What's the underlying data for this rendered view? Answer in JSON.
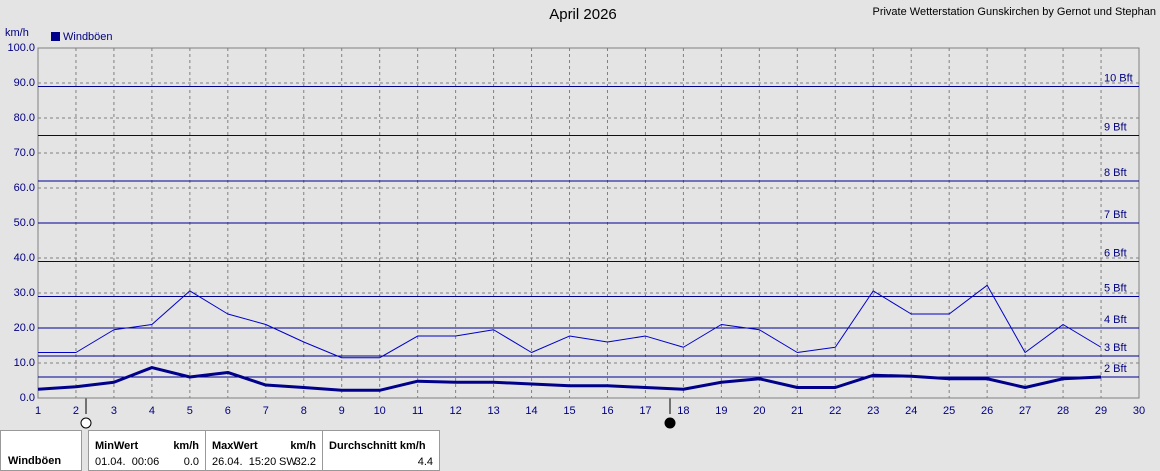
{
  "chart_data": {
    "type": "line",
    "title": "April 2026",
    "subtitle": "Private Wetterstation Gunskirchen by Gernot und Stephan",
    "y_label": "km/h",
    "x": [
      1,
      2,
      3,
      4,
      5,
      6,
      7,
      8,
      9,
      10,
      11,
      12,
      13,
      14,
      15,
      16,
      17,
      18,
      19,
      20,
      21,
      22,
      23,
      24,
      25,
      26,
      27,
      28,
      29
    ],
    "series": [
      {
        "name": "Windböen",
        "color": "#0000c8",
        "width": 1,
        "values": [
          13,
          13,
          19.5,
          21,
          30.6,
          24,
          21,
          16,
          11.5,
          11.5,
          17.7,
          17.7,
          19.5,
          13,
          17.7,
          16,
          17.7,
          14.5,
          21,
          19.5,
          13,
          14.5,
          30.6,
          24,
          24,
          32.2,
          13,
          21,
          14.5
        ]
      },
      {
        "color": "#00008b",
        "width": 3,
        "values": [
          2.5,
          3.2,
          4.5,
          8.7,
          6,
          7.3,
          3.7,
          3,
          2.2,
          2.2,
          4.8,
          4.5,
          4.5,
          4,
          3.5,
          3.5,
          3,
          2.5,
          4.5,
          5.5,
          3,
          3,
          6.5,
          6.2,
          5.5,
          5.5,
          3,
          5.5,
          6
        ]
      }
    ],
    "xlim": [
      1,
      30
    ],
    "xticks": [
      1,
      2,
      3,
      4,
      5,
      6,
      7,
      8,
      9,
      10,
      11,
      12,
      13,
      14,
      15,
      16,
      17,
      18,
      19,
      20,
      21,
      22,
      23,
      24,
      25,
      26,
      27,
      28,
      29,
      30
    ],
    "ylim": [
      0,
      100
    ],
    "yticks": [
      {
        "value": 0,
        "label": "0.0"
      },
      {
        "value": 10,
        "label": "10.0"
      },
      {
        "value": 20,
        "label": "20.0"
      },
      {
        "value": 30,
        "label": "30.0"
      },
      {
        "value": 40,
        "label": "40.0"
      },
      {
        "value": 50,
        "label": "50.0"
      },
      {
        "value": 60,
        "label": "60.0"
      },
      {
        "value": 70,
        "label": "70.0"
      },
      {
        "value": 80,
        "label": "80.0"
      },
      {
        "value": 90,
        "label": "90.0"
      },
      {
        "value": 100,
        "label": "100.0"
      }
    ],
    "reference_lines": [
      {
        "value": 6,
        "label": "2 Bft"
      },
      {
        "value": 12,
        "label": "3 Bft"
      },
      {
        "value": 20,
        "label": "4 Bft"
      },
      {
        "value": 29,
        "label": "5 Bft"
      },
      {
        "value": 39,
        "label": "6 Bft"
      },
      {
        "value": 50,
        "label": "7 Bft"
      },
      {
        "value": 62,
        "label": "8 Bft"
      },
      {
        "value": 75,
        "label": "9 Bft"
      },
      {
        "value": 89,
        "label": "10 Bft"
      }
    ],
    "grid": true
  },
  "stats": {
    "row_label": "Windböen",
    "min": {
      "header": "MinWert",
      "unit": "km/h",
      "date": "01.04.  00:06",
      "value": "0.0"
    },
    "max": {
      "header": "MaxWert",
      "unit": "km/h",
      "date": "26.04.  15:20",
      "direction": "SW",
      "value": "32.2"
    },
    "avg": {
      "header": "Durchschnitt km/h",
      "value": "4.4"
    }
  }
}
